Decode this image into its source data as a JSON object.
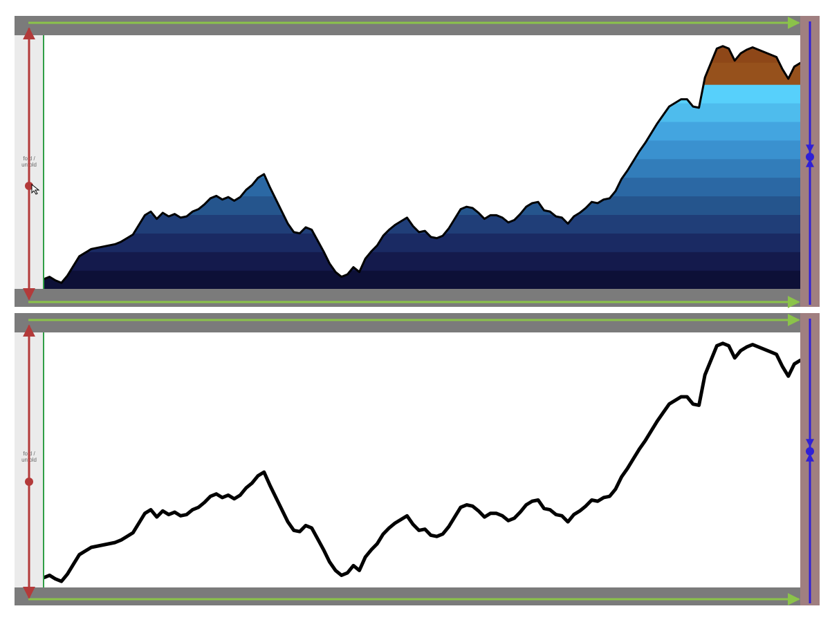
{
  "fold_control": {
    "label_line_1": "fold /",
    "label_line_2": "unfold"
  },
  "panels": [
    {
      "id": "top",
      "mode": "folded-colored",
      "cursor_visible": true
    },
    {
      "id": "bottom",
      "mode": "plain-line",
      "cursor_visible": false
    }
  ],
  "colors": {
    "frame_gray": "#7b7b7b",
    "gutter_gray": "#ebebeb",
    "rail_mauve": "#a07f80",
    "green_arrow": "#8bc34a",
    "red_arrow": "#b33a3a",
    "blue_control": "#2f1fd6",
    "green_guide": "#2f9e46",
    "line_black": "#000000",
    "band_blue_1": "#0d1037",
    "band_blue_2": "#141a4c",
    "band_blue_3": "#1a2a63",
    "band_blue_4": "#203e78",
    "band_blue_5": "#25558d",
    "band_blue_6": "#2b68a4",
    "band_blue_7": "#327dba",
    "band_blue_8": "#3a91cf",
    "band_blue_9": "#43a5e0",
    "band_blue_10": "#4ebced",
    "band_blue_11": "#57d0fb",
    "band_brown_1": "#96511c",
    "band_brown_2": "#8e4718",
    "band_brown_3": "#7b3b12"
  },
  "chart_data": {
    "type": "area",
    "series": [
      {
        "values": [
          8,
          10,
          7,
          5,
          11,
          19,
          27,
          30,
          33,
          34,
          35,
          36,
          37,
          39,
          42,
          45,
          53,
          61,
          64,
          58,
          63,
          60,
          62,
          59,
          60,
          64,
          66,
          70,
          75,
          77,
          74,
          76,
          73,
          76,
          82,
          86,
          92,
          95,
          84,
          74,
          64,
          54,
          47,
          46,
          51,
          49,
          40,
          31,
          21,
          14,
          10,
          12,
          18,
          14,
          25,
          31,
          36,
          44,
          49,
          53,
          56,
          59,
          52,
          47,
          48,
          43,
          42,
          44,
          50,
          58,
          66,
          68,
          67,
          63,
          58,
          61,
          61,
          59,
          55,
          57,
          62,
          68,
          71,
          72,
          65,
          64,
          60,
          59,
          54,
          60,
          63,
          67,
          72,
          71,
          74,
          75,
          81,
          91,
          98,
          106,
          114,
          121,
          129,
          137,
          144,
          151,
          154,
          157,
          157,
          151,
          150,
          175,
          187,
          199,
          201,
          199,
          189,
          195,
          198,
          200,
          198,
          196,
          194,
          192,
          182,
          174,
          184,
          187
        ]
      }
    ]
  }
}
